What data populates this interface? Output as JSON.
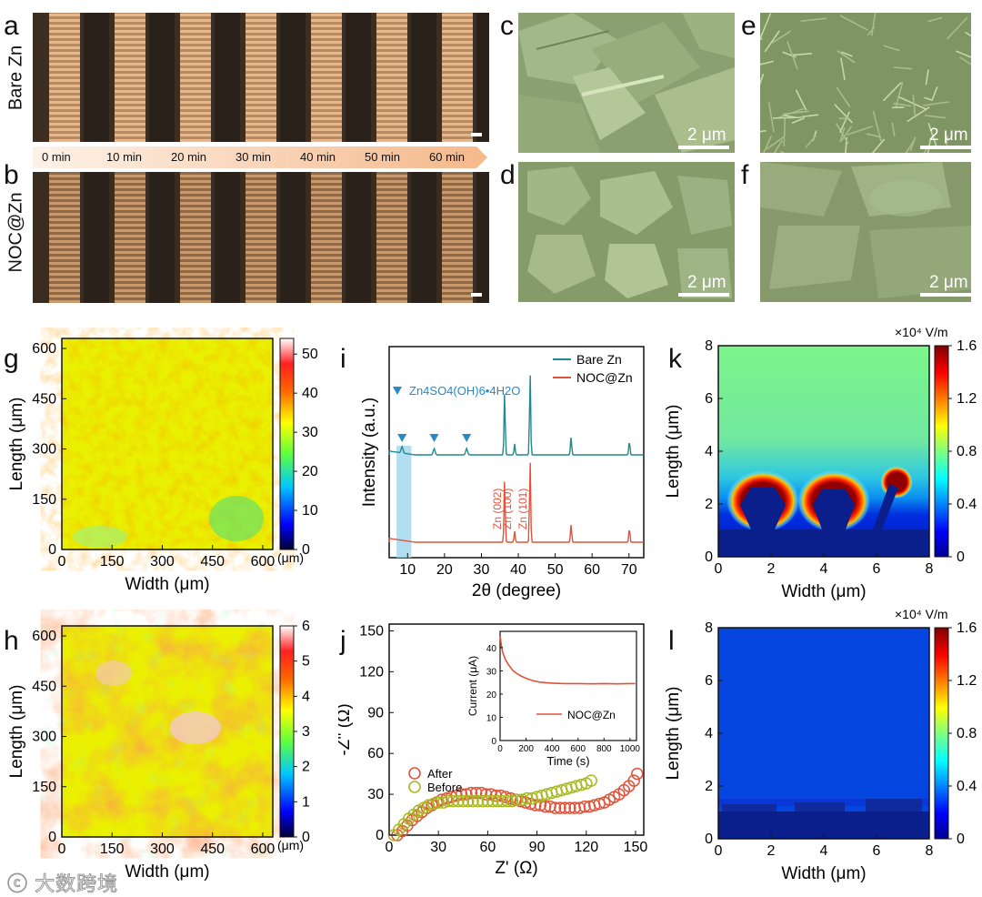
{
  "panels": {
    "a": "a",
    "b": "b",
    "c": "c",
    "d": "d",
    "e": "e",
    "f": "f",
    "g": "g",
    "h": "h",
    "i": "i",
    "j": "j",
    "k": "k",
    "l": "l"
  },
  "row_labels": {
    "a": "Bare Zn",
    "b": "NOC@Zn"
  },
  "time_labels": [
    "0 min",
    "10 min",
    "20 min",
    "30 min",
    "40 min",
    "50 min",
    "60 min"
  ],
  "sem_scale": "2 μm",
  "watermark": "大数跨境",
  "colors": {
    "bare_zn": "#1f8a8c",
    "noc_zn": "#e0523a",
    "after": "#e0523a",
    "before": "#a8b820",
    "marker": "#2a88c8",
    "highlight": "#9fd6ee"
  },
  "chart_data": [
    {
      "id": "g",
      "type": "heatmap",
      "xlabel": "Width (μm)",
      "ylabel": "Length (μm)",
      "xticks": [
        "0",
        "150",
        "300",
        "450",
        "600"
      ],
      "yticks": [
        "0",
        "150",
        "300",
        "450",
        "600"
      ],
      "xlim": [
        0,
        630
      ],
      "ylim": [
        0,
        630
      ],
      "colorbar": {
        "ticks": [
          "0",
          "10",
          "20",
          "30",
          "40",
          "50"
        ],
        "range": [
          0,
          54
        ],
        "unit": "(μm)"
      }
    },
    {
      "id": "h",
      "type": "heatmap",
      "xlabel": "Width (μm)",
      "ylabel": "Length (μm)",
      "xticks": [
        "0",
        "150",
        "300",
        "450",
        "600"
      ],
      "yticks": [
        "0",
        "150",
        "300",
        "450",
        "600"
      ],
      "xlim": [
        0,
        630
      ],
      "ylim": [
        0,
        630
      ],
      "colorbar": {
        "ticks": [
          "0",
          "1",
          "2",
          "3",
          "4",
          "5",
          "6"
        ],
        "range": [
          0,
          6
        ],
        "unit": "(μm)"
      }
    },
    {
      "id": "i",
      "type": "line",
      "xlabel": "2θ (degree)",
      "ylabel": "Intensity (a.u.)",
      "xticks": [
        "10",
        "20",
        "30",
        "40",
        "50",
        "60",
        "70"
      ],
      "xlim": [
        5,
        74
      ],
      "legend": [
        "Bare Zn",
        "NOC@Zn"
      ],
      "annotation": "Zn4SO4(OH)6•4H2O",
      "marker_positions": [
        8.5,
        17.2,
        26.0
      ],
      "highlight_range": [
        7,
        11
      ],
      "peak_labels": [
        "Zn (002)",
        "Zn (100)",
        "Zn (101)"
      ],
      "peaks_2theta": [
        36.3,
        39.0,
        43.2,
        54.3,
        70.1
      ],
      "series": [
        {
          "name": "Bare Zn",
          "extra_peaks": [
            8.5,
            17.2,
            26.0
          ]
        },
        {
          "name": "NOC@Zn"
        }
      ]
    },
    {
      "id": "j",
      "type": "scatter",
      "xlabel": "Z' (Ω)",
      "ylabel": "-Z'' (Ω)",
      "xticks": [
        "0",
        "30",
        "60",
        "90",
        "120",
        "150"
      ],
      "yticks": [
        "0",
        "30",
        "60",
        "90",
        "120",
        "150"
      ],
      "xlim": [
        0,
        155
      ],
      "ylim": [
        0,
        155
      ],
      "legend": [
        "After",
        "Before"
      ],
      "series": [
        {
          "name": "After",
          "x": [
            5,
            8,
            11,
            14,
            17,
            20,
            23,
            26,
            29,
            32,
            35,
            38,
            41,
            44,
            47,
            50,
            53,
            56,
            59,
            62,
            65,
            68,
            71,
            74,
            77,
            80,
            83,
            86,
            89,
            92,
            95,
            98,
            101,
            104,
            107,
            110,
            113,
            116,
            119,
            122,
            125,
            128,
            131,
            134,
            137,
            140,
            143,
            146,
            149,
            151
          ],
          "y": [
            0,
            3,
            7,
            11,
            14,
            17,
            20,
            22,
            24,
            26,
            27,
            28,
            29,
            30,
            30,
            31,
            31,
            31,
            30,
            30,
            29,
            29,
            28,
            27,
            26,
            25,
            24,
            23,
            22,
            22,
            21,
            21,
            20,
            20,
            20,
            20,
            20,
            20,
            21,
            21,
            22,
            23,
            24,
            26,
            28,
            30,
            33,
            36,
            40,
            45
          ]
        },
        {
          "name": "Before",
          "x": [
            3,
            6,
            9,
            12,
            15,
            18,
            21,
            24,
            27,
            30,
            33,
            36,
            39,
            42,
            45,
            48,
            51,
            54,
            57,
            60,
            63,
            66,
            69,
            72,
            75,
            78,
            81,
            84,
            87,
            90,
            93,
            96,
            99,
            102,
            105,
            108,
            111,
            114,
            117,
            120,
            123
          ],
          "y": [
            0,
            4,
            8,
            12,
            15,
            18,
            20,
            22,
            23,
            24,
            24,
            25,
            25,
            25,
            25,
            25,
            25,
            25,
            25,
            25,
            25,
            25,
            25,
            25,
            25,
            26,
            26,
            27,
            27,
            28,
            29,
            30,
            31,
            32,
            33,
            34,
            35,
            36,
            37,
            38,
            40
          ]
        }
      ],
      "inset": {
        "xlabel": "Time (s)",
        "ylabel": "Current (μA)",
        "xticks": [
          "0",
          "200",
          "400",
          "600",
          "800",
          "1000"
        ],
        "yticks": [
          "0",
          "10",
          "20",
          "30",
          "40"
        ],
        "xlim": [
          0,
          1050
        ],
        "ylim": [
          0,
          47
        ],
        "legend": "NOC@Zn",
        "x": [
          0,
          10,
          20,
          40,
          60,
          80,
          100,
          130,
          160,
          200,
          250,
          300,
          350,
          400,
          500,
          600,
          700,
          800,
          900,
          1000,
          1040
        ],
        "y": [
          45,
          41,
          38,
          35,
          33,
          31.5,
          30,
          28.8,
          27.8,
          26.8,
          25.8,
          25.2,
          24.9,
          24.7,
          24.5,
          24.5,
          24.4,
          24.5,
          24.4,
          24.5,
          24.5
        ]
      }
    },
    {
      "id": "k",
      "type": "heatmap",
      "xlabel": "Width (μm)",
      "ylabel": "Length (μm)",
      "xticks": [
        "0",
        "2",
        "4",
        "6",
        "8"
      ],
      "yticks": [
        "0",
        "2",
        "4",
        "6",
        "8"
      ],
      "xlim": [
        0,
        8
      ],
      "ylim": [
        0,
        8
      ],
      "colorbar": {
        "unit": "×10⁴ V/m",
        "ticks": [
          "0",
          "0.4",
          "0.8",
          "1.2",
          "1.6"
        ],
        "range": [
          0,
          1.6
        ]
      }
    },
    {
      "id": "l",
      "type": "heatmap",
      "xlabel": "Width (μm)",
      "ylabel": "Length (μm)",
      "xticks": [
        "0",
        "2",
        "4",
        "6",
        "8"
      ],
      "yticks": [
        "0",
        "2",
        "4",
        "6",
        "8"
      ],
      "xlim": [
        0,
        8
      ],
      "ylim": [
        0,
        8
      ],
      "colorbar": {
        "unit": "×10⁴ V/m",
        "ticks": [
          "0",
          "0.4",
          "0.8",
          "1.2",
          "1.6"
        ],
        "range": [
          0,
          1.6
        ]
      }
    }
  ]
}
